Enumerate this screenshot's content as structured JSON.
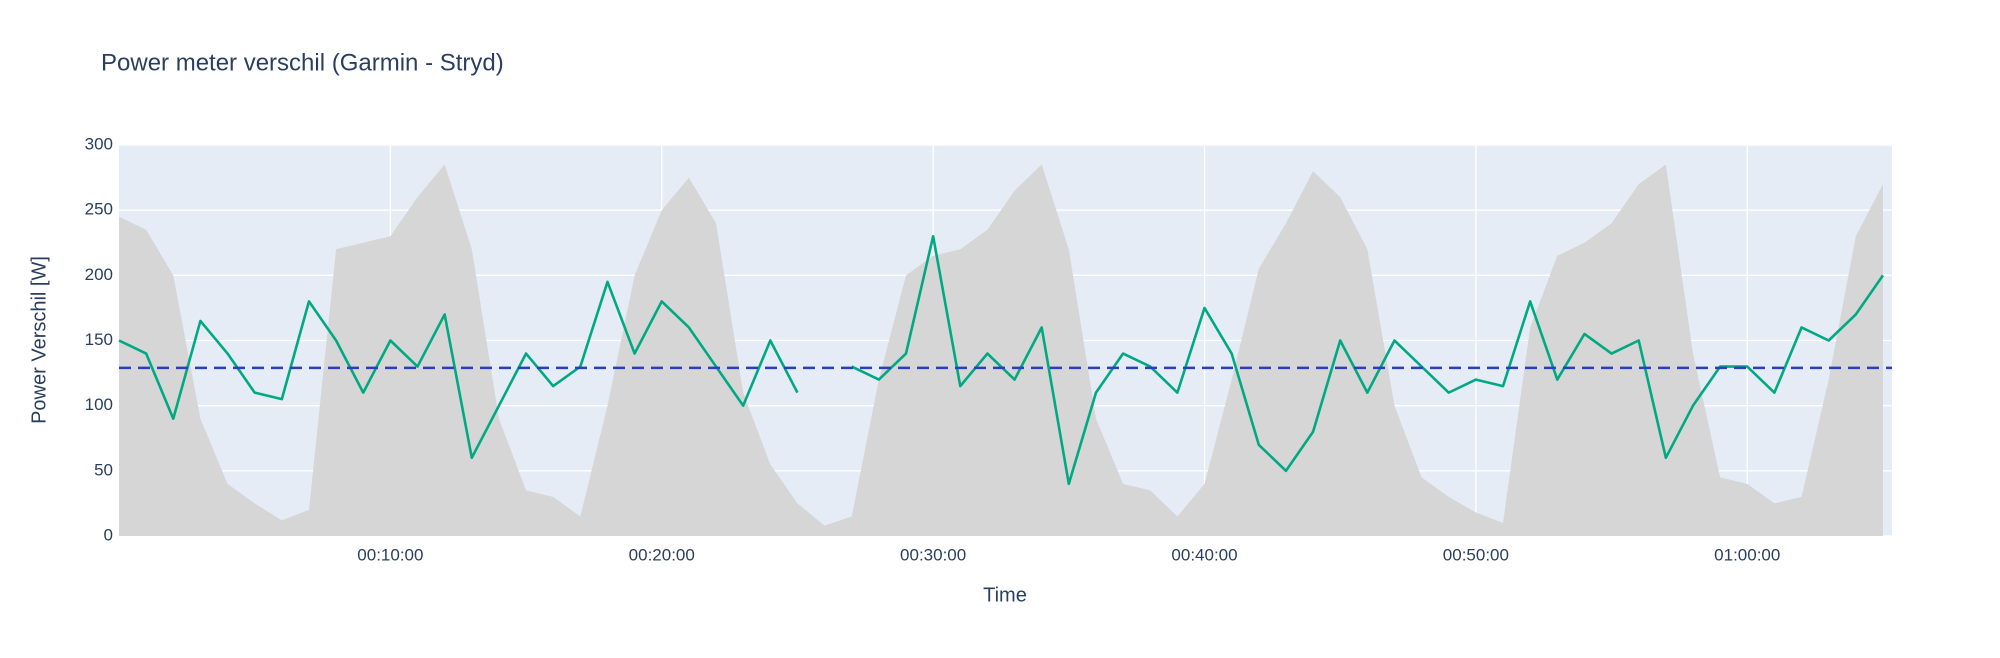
{
  "chart_data": {
    "type": "line",
    "title": "Power meter verschil (Garmin - Stryd)",
    "x_label": "Time",
    "y_label": "Power Verschil [W]",
    "x": [
      0,
      60,
      120,
      180,
      240,
      300,
      360,
      420,
      480,
      540,
      600,
      660,
      720,
      780,
      840,
      900,
      960,
      1020,
      1080,
      1140,
      1200,
      1260,
      1320,
      1380,
      1440,
      1500,
      1560,
      1620,
      1680,
      1740,
      1800,
      1860,
      1920,
      1980,
      2040,
      2100,
      2160,
      2220,
      2280,
      2340,
      2400,
      2460,
      2520,
      2580,
      2640,
      2700,
      2760,
      2820,
      2880,
      2940,
      3000,
      3060,
      3120,
      3180,
      3240,
      3300,
      3360,
      3420,
      3480,
      3540,
      3600,
      3660,
      3720,
      3780,
      3840,
      3900
    ],
    "series": [
      {
        "kind": "area",
        "color": "#d6d6d6",
        "values": [
          245,
          235,
          200,
          90,
          40,
          25,
          12,
          20,
          220,
          225,
          230,
          260,
          285,
          220,
          90,
          35,
          30,
          15,
          100,
          200,
          250,
          275,
          240,
          110,
          55,
          25,
          8,
          15,
          120,
          200,
          215,
          220,
          235,
          265,
          285,
          220,
          90,
          40,
          35,
          15,
          40,
          120,
          205,
          240,
          280,
          260,
          220,
          100,
          45,
          30,
          18,
          10,
          160,
          215,
          225,
          240,
          270,
          285,
          140,
          45,
          40,
          25,
          30,
          120,
          230,
          270
        ]
      },
      {
        "kind": "line",
        "color": "#00a982",
        "values": [
          150,
          140,
          90,
          165,
          140,
          110,
          105,
          180,
          150,
          110,
          150,
          130,
          170,
          60,
          100,
          140,
          115,
          130,
          195,
          140,
          180,
          160,
          130,
          100,
          150,
          110,
          null,
          130,
          120,
          140,
          230,
          115,
          140,
          120,
          160,
          40,
          110,
          140,
          130,
          110,
          175,
          140,
          70,
          50,
          80,
          150,
          110,
          150,
          130,
          110,
          120,
          115,
          180,
          120,
          155,
          140,
          150,
          60,
          100,
          130,
          130,
          110,
          160,
          150,
          170,
          200
        ]
      }
    ],
    "hline": {
      "value": 129,
      "color": "#2a3fbd"
    },
    "xlim": [
      0,
      3920
    ],
    "xticks": [
      {
        "value": 600,
        "label": "00:10:00"
      },
      {
        "value": 1200,
        "label": "00:20:00"
      },
      {
        "value": 1800,
        "label": "00:30:00"
      },
      {
        "value": 2400,
        "label": "00:40:00"
      },
      {
        "value": 3000,
        "label": "00:50:00"
      },
      {
        "value": 3600,
        "label": "01:00:00"
      }
    ],
    "ylim": [
      0,
      300
    ],
    "yticks": [
      0,
      50,
      100,
      150,
      200,
      250,
      300
    ],
    "grid": true
  }
}
